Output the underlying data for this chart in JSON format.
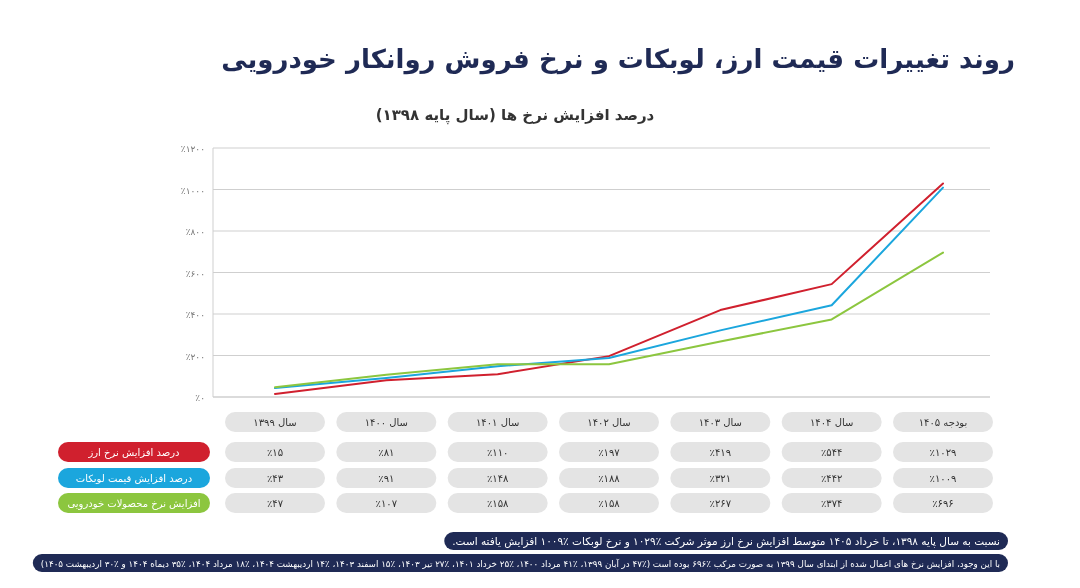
{
  "chart_data": {
    "type": "line",
    "title": "روند تغییرات قیمت ارز، لوبکات و نرخ فروش روانکار خودرویی",
    "subtitle": "درصد افزایش نرخ ها (سال پایه ۱۳۹۸)",
    "categories": [
      "سال ۱۳۹۹",
      "سال ۱۴۰۰",
      "سال ۱۴۰۱",
      "سال ۱۴۰۲",
      "سال ۱۴۰۳",
      "سال ۱۴۰۴",
      "بودجه ۱۴۰۵"
    ],
    "series": [
      {
        "name": "درصد افزایش نرخ ارز",
        "color": "#d0202e",
        "values": [
          15,
          81,
          110,
          197,
          419,
          544,
          1029
        ],
        "value_labels": [
          "٪۱۵",
          "٪۸۱",
          "٪۱۱۰",
          "٪۱۹۷",
          "٪۴۱۹",
          "٪۵۴۴",
          "٪۱۰۲۹"
        ]
      },
      {
        "name": "درصد افزایش قیمت لوبکات",
        "color": "#1ba6dd",
        "values": [
          43,
          91,
          148,
          188,
          321,
          442,
          1009
        ],
        "value_labels": [
          "٪۴۳",
          "٪۹۱",
          "٪۱۴۸",
          "٪۱۸۸",
          "٪۳۲۱",
          "٪۴۴۲",
          "٪۱۰۰۹"
        ]
      },
      {
        "name": "افزایش نرخ محصولات خودرویی",
        "color": "#8cc63f",
        "values": [
          47,
          107,
          158,
          158,
          267,
          374,
          696
        ],
        "value_labels": [
          "٪۴۷",
          "٪۱۰۷",
          "٪۱۵۸",
          "٪۱۵۸",
          "٪۲۶۷",
          "٪۳۷۴",
          "٪۶۹۶"
        ]
      }
    ],
    "ylim": [
      0,
      1200
    ],
    "yticks": [
      {
        "value": 0,
        "label": "٪۰"
      },
      {
        "value": 200,
        "label": "٪۲۰۰"
      },
      {
        "value": 400,
        "label": "٪۴۰۰"
      },
      {
        "value": 600,
        "label": "٪۶۰۰"
      },
      {
        "value": 800,
        "label": "٪۸۰۰"
      },
      {
        "value": 1000,
        "label": "٪۱۰۰۰"
      },
      {
        "value": 1200,
        "label": "٪۱۲۰۰"
      }
    ],
    "grid": "y",
    "legend": "bottom left",
    "marker": "none",
    "line_style": "solid",
    "annotations": [
      "نسبت به سال پایه ۱۳۹۸، تا خرداد ۱۴۰۵ متوسط افزایش نرخ ارز موثر شرکت ٪۱۰۲۹ و نرخ لوبکات ٪۱۰۰۹ افزایش یافته است.",
      "با این وجود، افزایش نرخ های اعمال شده از ابتدای سال ۱۳۹۹ به صورت مرکب ٪۶۹۶ بوده است (٪۴۷ در آبان ۱۳۹۹، ٪۴۱ مرداد ۱۴۰۰، ٪۲۵ خرداد ۱۴۰۱، ٪۲۷ تیر ۱۴۰۳، ٪۱۵ اسفند ۱۴۰۳، ٪۱۴ اردیبهشت ۱۴۰۴، ٪۱۸ مرداد ۱۴۰۴، ٪۳۵ دیماه ۱۴۰۴ و ٪۳۰ اردیبهشت ۱۴۰۵)"
    ]
  }
}
